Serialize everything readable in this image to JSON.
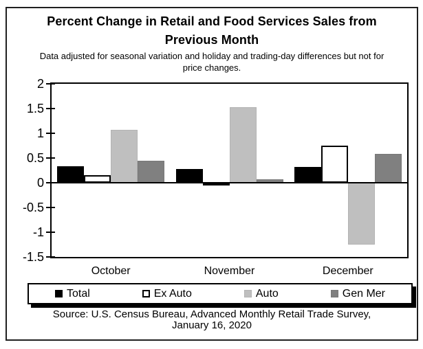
{
  "figure": {
    "title": {
      "line1": "Percent Change in Retail and Food Services Sales from",
      "line2": "Previous Month"
    },
    "subtitle": {
      "line1": "Data adjusted for seasonal variation and holiday and trading-day differences but not for",
      "line2": "price changes."
    },
    "source": {
      "line1": "Source: U.S. Census Bureau, Advanced Monthly Retail Trade Survey,",
      "line2": "January 16, 2020"
    }
  },
  "chart_data": {
    "type": "bar",
    "title": "Percent Change in Retail and Food Services Sales from Previous Month",
    "subtitle": "Data adjusted for seasonal variation and holiday and trading-day differences but not for price changes.",
    "source": "Source: U.S. Census Bureau, Advanced Monthly Retail Trade Survey, January 16, 2020",
    "categories": [
      "October",
      "November",
      "December"
    ],
    "series": [
      {
        "name": "Total",
        "color": "#000000",
        "border_color": "#000000",
        "border_width": 1,
        "values": [
          0.33,
          0.28,
          0.32
        ]
      },
      {
        "name": "Ex Auto",
        "color": "#ffffff",
        "border_color": "#000000",
        "border_width": 2,
        "values": [
          0.15,
          -0.05,
          0.75
        ]
      },
      {
        "name": "Auto",
        "color": "#bfbfbf",
        "border_color": "#b3b3b3",
        "border_width": 1,
        "values": [
          1.07,
          1.53,
          -1.25
        ]
      },
      {
        "name": "Gen Mer",
        "color": "#808080",
        "border_color": "#777777",
        "border_width": 1,
        "values": [
          0.44,
          0.07,
          0.59
        ]
      }
    ],
    "ylim": [
      -1.5,
      2
    ],
    "yticks": [
      2,
      1.5,
      1,
      0.5,
      0,
      -0.5,
      -1,
      -1.5
    ],
    "ylabel": "",
    "xlabel": "",
    "grid": false,
    "legend_position": "bottom"
  }
}
